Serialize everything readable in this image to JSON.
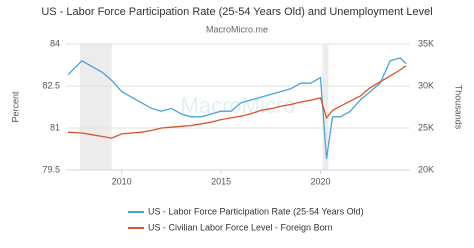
{
  "chart_data": {
    "type": "line",
    "title": "US - Labor Force Participation Rate (25-54 Years Old) and Unemployment Level",
    "subtitle": "MacroMicro.me",
    "watermark": "MacroMicro",
    "y_label": "Percent",
    "y2_label": "Thousands",
    "x": [
      2007.3,
      2008,
      2008.5,
      2009,
      2009.5,
      2010,
      2010.5,
      2011,
      2011.5,
      2012,
      2012.5,
      2013,
      2013.5,
      2014,
      2014.5,
      2015,
      2015.5,
      2016,
      2016.5,
      2017,
      2017.5,
      2018,
      2018.5,
      2019,
      2019.5,
      2020,
      2020.3,
      2020.6,
      2021,
      2021.5,
      2022,
      2022.5,
      2023,
      2023.5,
      2024,
      2024.3
    ],
    "series": [
      {
        "name": "US - Labor Force Participation Rate (25-54 Years Old)",
        "color": "#4aa3d8",
        "values": [
          82.9,
          83.4,
          83.2,
          83.0,
          82.7,
          82.3,
          82.1,
          81.9,
          81.7,
          81.6,
          81.7,
          81.5,
          81.4,
          81.4,
          81.5,
          81.6,
          81.6,
          81.9,
          82.0,
          82.1,
          82.2,
          82.3,
          82.4,
          82.6,
          82.6,
          82.8,
          79.9,
          81.4,
          81.4,
          81.6,
          82.0,
          82.3,
          82.6,
          83.4,
          83.5,
          83.3
        ]
      },
      {
        "name": "US - Civilian Labor Force Level - Foreign Born",
        "color": "#d9542b",
        "axis": "y2",
        "values": [
          24500,
          24400,
          24200,
          24000,
          23800,
          24300,
          24400,
          24500,
          24700,
          25000,
          25100,
          25200,
          25300,
          25500,
          25700,
          26000,
          26200,
          26400,
          26700,
          27100,
          27300,
          27600,
          27800,
          28100,
          28300,
          28600,
          26200,
          27100,
          27600,
          28200,
          28800,
          29800,
          30500,
          31200,
          31900,
          32400
        ]
      }
    ],
    "xlim": [
      2007.2,
      2024.5
    ],
    "xticks": [
      2010,
      2015,
      2020
    ],
    "ylim": [
      79.5,
      84
    ],
    "yticks": [
      84,
      82.5,
      81,
      79.5
    ],
    "y2lim": [
      20000,
      35000
    ],
    "y2ticks": [
      {
        "value": 35000,
        "label": "35K"
      },
      {
        "value": 30000,
        "label": "30K"
      },
      {
        "value": 25000,
        "label": "25K"
      },
      {
        "value": 20000,
        "label": "20K"
      }
    ],
    "shaded_periods": [
      [
        2007.9,
        2009.5
      ],
      [
        2020.1,
        2020.4
      ]
    ],
    "grid": true
  }
}
